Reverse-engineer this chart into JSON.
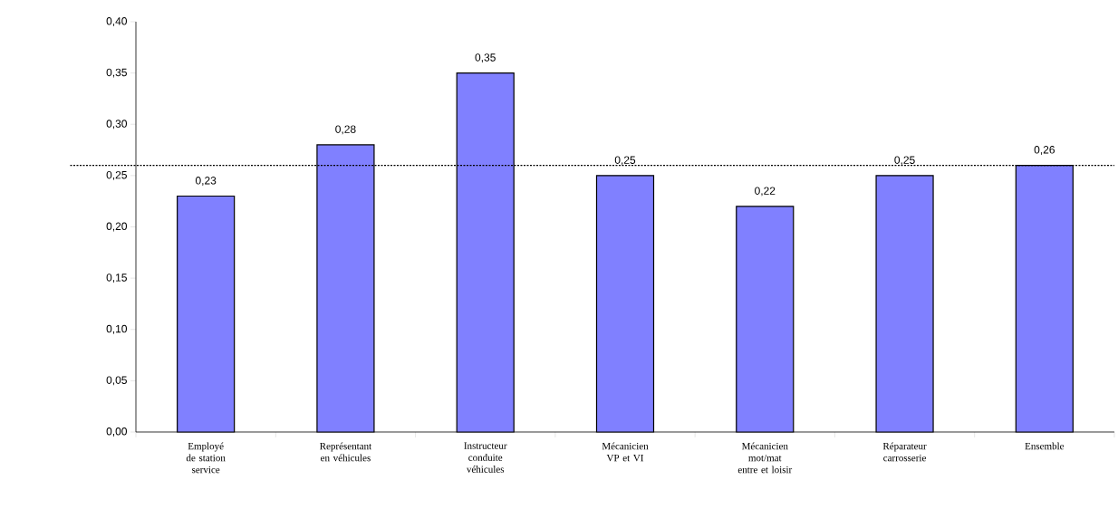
{
  "chart_data": {
    "type": "bar",
    "categories": [
      "Employé de station service",
      "Représentant en véhicules",
      "Instructeur conduite véhicules",
      "Mécanicien VP et VI",
      "Mécanicien mot/mat entre et loisir",
      "Réparateur carrosserie",
      "Ensemble"
    ],
    "values": [
      0.23,
      0.28,
      0.35,
      0.25,
      0.22,
      0.25,
      0.26
    ],
    "value_labels": [
      "0,23",
      "0,28",
      "0,35",
      "0,25",
      "0,22",
      "0,25",
      "0,26"
    ],
    "color": "#8080ff",
    "ylim": [
      0,
      0.4
    ],
    "yticks": [
      {
        "value": 0,
        "label": "0,00"
      },
      {
        "value": 0.05,
        "label": "0,05"
      },
      {
        "value": 0.1,
        "label": "0,10"
      },
      {
        "value": 0.15,
        "label": "0,15"
      },
      {
        "value": 0.2,
        "label": "0,20"
      },
      {
        "value": 0.25,
        "label": "0,25"
      },
      {
        "value": 0.3,
        "label": "0,30"
      },
      {
        "value": 0.35,
        "label": "0,35"
      },
      {
        "value": 0.4,
        "label": "0,40"
      }
    ],
    "ref_lines": [
      {
        "axis": "y",
        "value": 0.26,
        "line_style": "dotted",
        "color": "#000000"
      }
    ],
    "grid": false
  }
}
